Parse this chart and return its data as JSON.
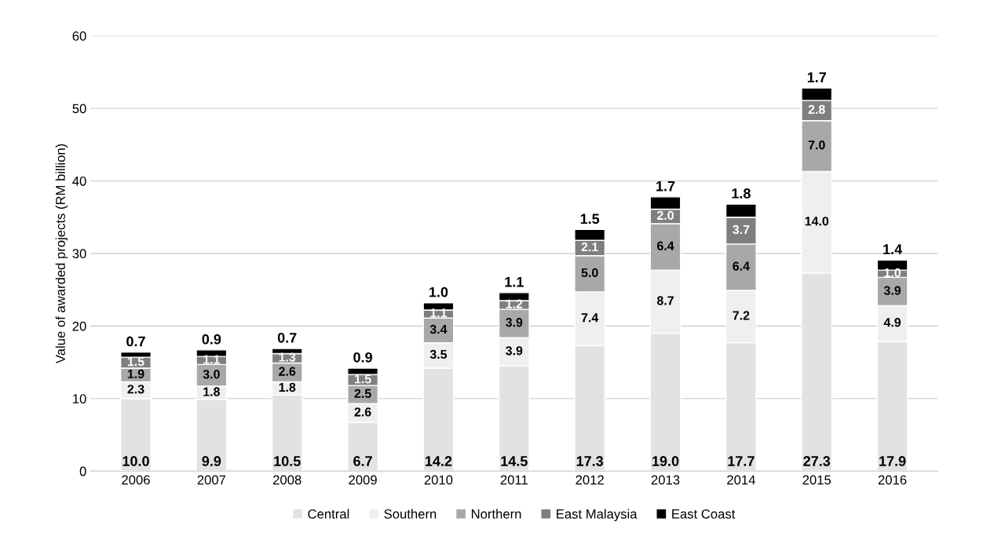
{
  "chart_data": {
    "type": "bar",
    "stacked": true,
    "ylabel": "Value of awarded projects (RM billion)",
    "categories": [
      "2006",
      "2007",
      "2008",
      "2009",
      "2010",
      "2011",
      "2012",
      "2013",
      "2014",
      "2015",
      "2016"
    ],
    "series": [
      {
        "name": "Central",
        "color": "#e2e2e2",
        "values": [
          10.0,
          9.9,
          10.5,
          6.7,
          14.2,
          14.5,
          17.3,
          19.0,
          17.7,
          27.3,
          17.9
        ],
        "value_labels": [
          "10.0",
          "9.9",
          "10.5",
          "6.7",
          "14.2",
          "14.5",
          "17.3",
          "19.0",
          "17.7",
          "27.3",
          "17.9"
        ]
      },
      {
        "name": "Southern",
        "color": "#efefef",
        "values": [
          2.3,
          1.8,
          1.8,
          2.6,
          3.5,
          3.9,
          7.4,
          8.7,
          7.2,
          14.0,
          4.9
        ],
        "value_labels": [
          "2.3",
          "1.8",
          "1.8",
          "2.6",
          "3.5",
          "3.9",
          "7.4",
          "8.7",
          "7.2",
          "14.0",
          "4.9"
        ]
      },
      {
        "name": "Northern",
        "color": "#a8a8a8",
        "values": [
          1.9,
          3.0,
          2.6,
          2.5,
          3.4,
          3.9,
          5.0,
          6.4,
          6.4,
          7.0,
          3.9
        ],
        "value_labels": [
          "1.9",
          "3.0",
          "2.6",
          "2.5",
          "3.4",
          "3.9",
          "5.0",
          "6.4",
          "6.4",
          "7.0",
          "3.9"
        ]
      },
      {
        "name": "East Malaysia",
        "color": "#7f7f7f",
        "values": [
          1.5,
          1.1,
          1.3,
          1.5,
          1.1,
          1.2,
          2.1,
          2.0,
          3.7,
          2.8,
          1.0
        ],
        "value_labels": [
          "1.5",
          "1.1",
          "1.3",
          "1.5",
          "1.1",
          "1.2",
          "2.1",
          "2.0",
          "3.7",
          "2.8",
          "1.0"
        ]
      },
      {
        "name": "East Coast",
        "color": "#000000",
        "values": [
          0.7,
          0.9,
          0.7,
          0.9,
          1.0,
          1.1,
          1.5,
          1.7,
          1.8,
          1.7,
          1.4
        ],
        "value_labels": [
          "0.7",
          "0.9",
          "0.7",
          "0.9",
          "1.0",
          "1.1",
          "1.5",
          "1.7",
          "1.8",
          "1.7",
          "1.4"
        ]
      }
    ],
    "ylim": [
      0,
      60
    ],
    "yticks": [
      0,
      10,
      20,
      30,
      40,
      50,
      60
    ],
    "grid": "y",
    "legend": "bottom"
  }
}
